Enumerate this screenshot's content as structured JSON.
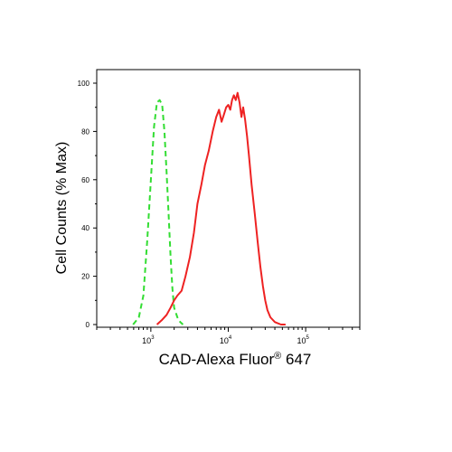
{
  "chart_data": {
    "type": "line",
    "title": "",
    "xlabel": {
      "main": "CAD-Alexa Fluor",
      "superscript": "®",
      "suffix": " 647"
    },
    "ylabel": "Cell Counts (% Max)",
    "xscale": "log",
    "xlim": [
      200,
      500000
    ],
    "ylim": [
      0,
      105
    ],
    "yticks": [
      0,
      20,
      40,
      60,
      80,
      100
    ],
    "xticks": [
      {
        "value": 1000,
        "base": "10",
        "exp": "3"
      },
      {
        "value": 10000,
        "base": "10",
        "exp": "4"
      },
      {
        "value": 100000,
        "base": "10",
        "exp": "5"
      }
    ],
    "grid": false,
    "series": [
      {
        "color": "#33dd33",
        "dash": "dashed",
        "x": [
          590,
          700,
          800,
          900,
          1000,
          1100,
          1200,
          1300,
          1400,
          1500,
          1600,
          1700,
          1800,
          1900,
          2000,
          2200,
          2400,
          2600
        ],
        "y": [
          0,
          3,
          12,
          35,
          60,
          82,
          92,
          93,
          91,
          80,
          63,
          45,
          28,
          15,
          7,
          3,
          1,
          0
        ]
      },
      {
        "color": "#ee2222",
        "dash": "solid",
        "x": [
          1200,
          1400,
          1600,
          1800,
          2000,
          2200,
          2500,
          2800,
          3200,
          3600,
          4000,
          4500,
          5000,
          5600,
          6300,
          7000,
          7600,
          8200,
          8800,
          9400,
          10000,
          10600,
          11200,
          11800,
          12500,
          13200,
          14000,
          14800,
          15600,
          16500,
          17500,
          18500,
          20000,
          22000,
          24000,
          26000,
          28000,
          30000,
          32000,
          35000,
          40000,
          48000,
          55000
        ],
        "y": [
          0,
          2,
          4,
          7,
          10,
          12,
          14,
          20,
          28,
          38,
          50,
          58,
          66,
          72,
          80,
          86,
          89,
          84,
          87,
          90,
          91,
          89,
          93,
          95,
          93,
          96,
          92,
          86,
          90,
          85,
          78,
          70,
          58,
          46,
          34,
          24,
          16,
          10,
          6,
          3,
          1,
          0,
          0
        ]
      }
    ]
  }
}
